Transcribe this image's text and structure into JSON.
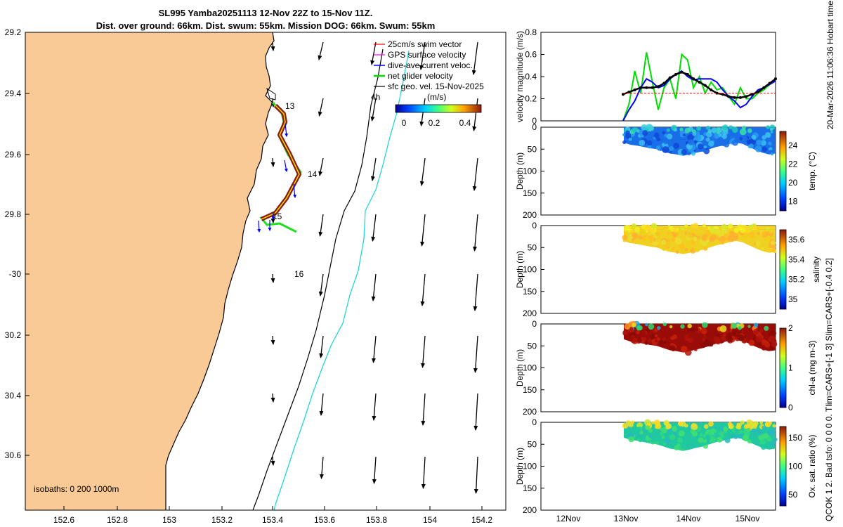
{
  "figure": {
    "title_line1": "SL995 Yamba20251113 12-Nov 22Z to 15-Nov 11Z.",
    "title_line2": "Dist. over ground: 66km. Dist. swum: 55km. Mission DOG: 66km. Swum: 55km",
    "side_right": "20-Mar-2026 11:06:36 Hobart time",
    "side_left": "QCOK 1  2. Bad tsfo: 0  0  0  0. Tlim=CARS+[-1 3] Slim=CARS+[-0.4 0.2]"
  },
  "map": {
    "isobaths_label": "isobaths: 0   200  1000m",
    "lat_ticks": [
      "29.2",
      "29.4",
      "29.6",
      "29.8",
      "-30",
      "30.2",
      "30.4",
      "30.6"
    ],
    "lon_ticks": [
      "152.6",
      "152.8",
      "153",
      "153.2",
      "153.4",
      "153.6",
      "153.8",
      "154",
      "154.2"
    ],
    "day_labels": [
      "13",
      "14",
      "15",
      "16"
    ],
    "extra_label": "4h",
    "legend": [
      {
        "label": "25cm/s swim vector",
        "color": "#ff0000"
      },
      {
        "label": "GPS surface velocity",
        "color": "#ff00ff"
      },
      {
        "label": "dive-ave current veloc.",
        "color": "#0000ff"
      },
      {
        "label": "net glider velocity",
        "color": "#00dd00"
      },
      {
        "label": "sfc geo. vel. 15-Nov-2025",
        "color": "#000000"
      }
    ],
    "colorbar": {
      "title": "(m/s)",
      "ticks": [
        "0",
        "0.2",
        "0.4"
      ]
    },
    "land_color": "#f9c996",
    "track_color": "#8b1a0e"
  },
  "chart_data": [
    {
      "type": "line",
      "title": "",
      "ylabel": "velocity magnitude (m/s)",
      "ylim": [
        0,
        0.8
      ],
      "y_ticks": [
        "0",
        "0.2",
        "0.4",
        "0.6",
        "0.8"
      ],
      "x_ticks": [
        "12Nov",
        "13Nov",
        "14Nov",
        "15Nov"
      ],
      "x": [
        13.0,
        13.1,
        13.2,
        13.3,
        13.4,
        13.5,
        13.6,
        13.7,
        13.8,
        13.9,
        14.0,
        14.1,
        14.2,
        14.3,
        14.4,
        14.5,
        14.6,
        14.7,
        14.8,
        14.9,
        15.0,
        15.1,
        15.2,
        15.3,
        15.4,
        15.5,
        15.6
      ],
      "series": [
        {
          "name": "net glider velocity",
          "color": "#00dd00",
          "values": [
            0.0,
            0.15,
            0.45,
            0.25,
            0.62,
            0.35,
            0.1,
            0.3,
            0.38,
            0.2,
            0.6,
            0.55,
            0.3,
            0.4,
            0.25,
            0.35,
            0.28,
            0.3,
            0.22,
            0.15,
            0.3,
            0.2,
            0.2,
            0.25,
            0.28,
            0.33,
            0.36
          ]
        },
        {
          "name": "dive-ave current veloc.",
          "color": "#0000ff",
          "values": [
            0.0,
            0.1,
            0.18,
            0.3,
            0.38,
            0.35,
            0.3,
            0.32,
            0.38,
            0.42,
            0.45,
            0.4,
            0.37,
            0.38,
            0.38,
            0.38,
            0.35,
            0.28,
            0.22,
            0.18,
            0.12,
            0.15,
            0.22,
            0.28,
            0.3,
            0.33,
            0.36
          ]
        },
        {
          "name": "sfc geo. vel.",
          "color": "#000000",
          "values": [
            0.24,
            0.26,
            0.28,
            0.3,
            0.3,
            0.3,
            0.31,
            0.34,
            0.39,
            0.42,
            0.44,
            0.42,
            0.38,
            0.35,
            0.32,
            0.28,
            0.25,
            0.24,
            0.22,
            0.21,
            0.21,
            0.22,
            0.24,
            0.26,
            0.3,
            0.34,
            0.38
          ]
        },
        {
          "name": "25cm/s swim vector",
          "color": "#ff0000",
          "values": [
            0.25,
            0.25,
            0.25,
            0.25,
            0.25,
            0.25,
            0.25,
            0.25,
            0.25,
            0.25,
            0.25,
            0.25,
            0.25,
            0.25,
            0.25,
            0.25,
            0.25,
            0.25,
            0.25,
            0.25,
            0.25,
            0.25,
            0.25,
            0.25,
            0.25,
            0.25,
            0.25
          ]
        }
      ]
    },
    {
      "type": "heatmap",
      "ylabel": "Depth (m)",
      "clabel": "temp. (°C)",
      "ylim": [
        200,
        0
      ],
      "y_ticks": [
        "0",
        "50",
        "100",
        "150",
        "200"
      ],
      "c_ticks": [
        "18",
        "20",
        "22",
        "24"
      ],
      "clim": [
        17,
        25.5
      ]
    },
    {
      "type": "heatmap",
      "ylabel": "Depth (m)",
      "clabel": "salinity",
      "ylim": [
        200,
        0
      ],
      "y_ticks": [
        "0",
        "50",
        "100",
        "150",
        "200"
      ],
      "c_ticks": [
        "35",
        "35.2",
        "35.4",
        "35.6"
      ],
      "clim": [
        34.9,
        35.7
      ]
    },
    {
      "type": "heatmap",
      "ylabel": "Depth (m)",
      "clabel": "chl-a (mg m-3)",
      "ylim": [
        200,
        0
      ],
      "y_ticks": [
        "0",
        "50",
        "100",
        "150",
        "200"
      ],
      "c_ticks": [
        "0",
        "1",
        "2"
      ],
      "clim": [
        0,
        2
      ]
    },
    {
      "type": "heatmap",
      "ylabel": "Depth (m)",
      "clabel": "Ox. sat. ratio (%)",
      "ylim": [
        200,
        0
      ],
      "y_ticks": [
        "0",
        "50",
        "100",
        "150",
        "200"
      ],
      "c_ticks": [
        "50",
        "100",
        "150"
      ],
      "clim": [
        30,
        170
      ]
    }
  ]
}
